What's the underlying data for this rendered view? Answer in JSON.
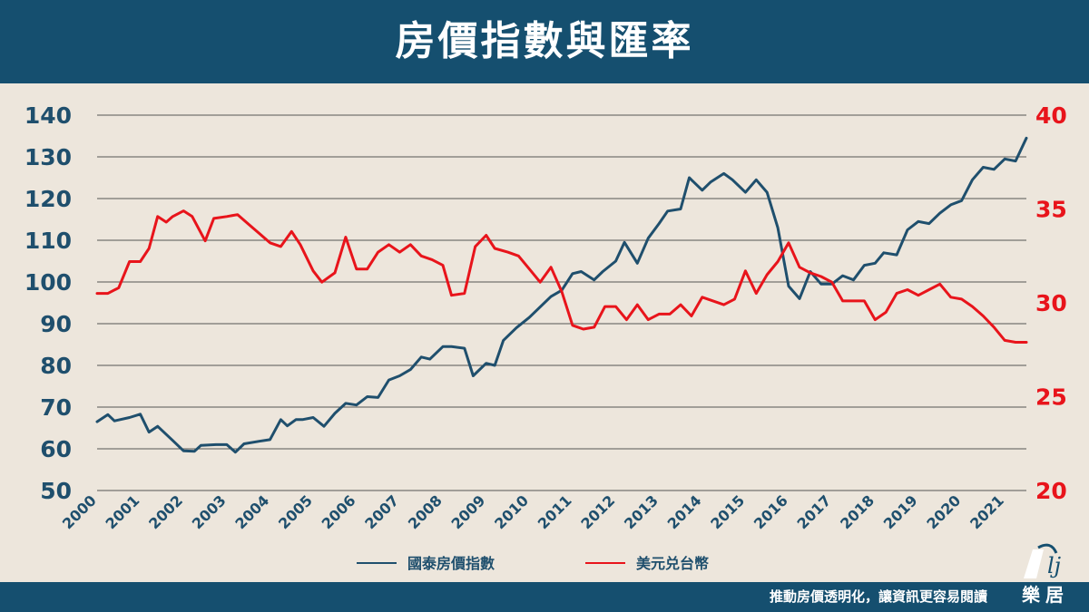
{
  "header": {
    "title": "房價指數與匯率"
  },
  "footer": {
    "slogan": "推動房價透明化，讓資訊更容易閱讀",
    "logo_text": "樂居",
    "logo_icon": "rakuyu-logo-icon"
  },
  "colors": {
    "header_bg": "#154f6f",
    "background": "#ede6dc",
    "index_line": "#1f4f6d",
    "fx_line": "#e8141b",
    "grid": "#555555"
  },
  "chart_data": {
    "type": "line",
    "title": "房價指數與匯率",
    "xlabel": "",
    "ylabel_left": "",
    "ylabel_right": "",
    "x_range": [
      2000,
      2021.5
    ],
    "x_tick_labels": [
      "2000",
      "2001",
      "2002",
      "2003",
      "2004",
      "2005",
      "2006",
      "2007",
      "2008",
      "2009",
      "2010",
      "2011",
      "2012",
      "2013",
      "2014",
      "2015",
      "2016",
      "2017",
      "2018",
      "2019",
      "2020",
      "2021"
    ],
    "y_left": {
      "range": [
        50,
        140
      ],
      "ticks": [
        "50",
        "60",
        "70",
        "80",
        "90",
        "100",
        "110",
        "120",
        "130",
        "140"
      ]
    },
    "y_right": {
      "range": [
        20,
        40
      ],
      "ticks": [
        "20",
        "25",
        "30",
        "35",
        "40"
      ]
    },
    "grid": true,
    "legend_position": "bottom",
    "legend": [
      "國泰房價指數",
      "美元兑台幣"
    ],
    "series": [
      {
        "name": "國泰房價指數",
        "axis": "left",
        "x": [
          2000.0,
          2000.25,
          2000.4,
          2000.75,
          2001.0,
          2001.2,
          2001.4,
          2001.75,
          2002.0,
          2002.25,
          2002.4,
          2002.75,
          2003.0,
          2003.2,
          2003.4,
          2003.75,
          2004.0,
          2004.25,
          2004.4,
          2004.6,
          2004.75,
          2005.0,
          2005.25,
          2005.5,
          2005.75,
          2006.0,
          2006.25,
          2006.5,
          2006.75,
          2007.0,
          2007.25,
          2007.5,
          2007.7,
          2008.0,
          2008.2,
          2008.5,
          2008.7,
          2009.0,
          2009.2,
          2009.4,
          2009.7,
          2010.0,
          2010.25,
          2010.5,
          2010.75,
          2011.0,
          2011.2,
          2011.5,
          2011.7,
          2012.0,
          2012.2,
          2012.5,
          2012.75,
          2013.0,
          2013.2,
          2013.5,
          2013.7,
          2014.0,
          2014.2,
          2014.5,
          2014.7,
          2015.0,
          2015.25,
          2015.5,
          2015.75,
          2016.0,
          2016.25,
          2016.5,
          2016.75,
          2017.0,
          2017.25,
          2017.5,
          2017.75,
          2018.0,
          2018.2,
          2018.5,
          2018.75,
          2019.0,
          2019.25,
          2019.5,
          2019.75,
          2020.0,
          2020.25,
          2020.5,
          2020.75,
          2021.0,
          2021.25,
          2021.5
        ],
        "values": [
          66.5,
          68.2,
          66.7,
          67.5,
          68.3,
          64.0,
          65.4,
          62.0,
          59.5,
          59.4,
          60.8,
          61.0,
          61.0,
          59.2,
          61.2,
          61.8,
          62.2,
          67.0,
          65.5,
          67.0,
          67.0,
          67.5,
          65.4,
          68.5,
          70.9,
          70.5,
          72.5,
          72.3,
          76.5,
          77.5,
          79.0,
          82.0,
          81.5,
          84.5,
          84.5,
          84.1,
          77.5,
          80.5,
          80.0,
          86.0,
          89.0,
          91.5,
          94.0,
          96.5,
          98.0,
          102.0,
          102.5,
          100.5,
          102.5,
          105.0,
          109.5,
          104.5,
          110.5,
          114.0,
          117.0,
          117.5,
          125.0,
          122.0,
          124.0,
          126.0,
          124.5,
          121.5,
          124.5,
          121.5,
          113.0,
          99.0,
          96.0,
          102.5,
          99.5,
          99.5,
          101.5,
          100.5,
          104.0,
          104.5,
          107.0,
          106.5,
          112.5,
          114.5,
          114.0,
          116.5,
          118.5,
          119.5,
          124.5,
          127.5,
          127.0,
          129.5,
          129.0,
          134.5
        ]
      },
      {
        "name": "美元兑台幣",
        "axis": "right",
        "x": [
          2000.0,
          2000.25,
          2000.5,
          2000.75,
          2001.0,
          2001.2,
          2001.4,
          2001.6,
          2001.75,
          2002.0,
          2002.2,
          2002.5,
          2002.7,
          2003.0,
          2003.25,
          2003.5,
          2003.75,
          2004.0,
          2004.25,
          2004.5,
          2004.7,
          2005.0,
          2005.2,
          2005.5,
          2005.75,
          2006.0,
          2006.25,
          2006.5,
          2006.75,
          2007.0,
          2007.25,
          2007.5,
          2007.75,
          2008.0,
          2008.2,
          2008.5,
          2008.75,
          2009.0,
          2009.2,
          2009.5,
          2009.75,
          2010.0,
          2010.25,
          2010.5,
          2010.75,
          2011.0,
          2011.25,
          2011.5,
          2011.75,
          2012.0,
          2012.25,
          2012.5,
          2012.75,
          2013.0,
          2013.25,
          2013.5,
          2013.75,
          2014.0,
          2014.25,
          2014.5,
          2014.75,
          2015.0,
          2015.25,
          2015.5,
          2015.75,
          2016.0,
          2016.25,
          2016.5,
          2016.75,
          2017.0,
          2017.25,
          2017.5,
          2017.75,
          2018.0,
          2018.25,
          2018.5,
          2018.75,
          2019.0,
          2019.25,
          2019.5,
          2019.75,
          2020.0,
          2020.25,
          2020.5,
          2020.75,
          2021.0,
          2021.25,
          2021.5
        ],
        "values": [
          30.5,
          30.5,
          30.8,
          32.2,
          32.2,
          32.9,
          34.6,
          34.3,
          34.6,
          34.9,
          34.6,
          33.3,
          34.5,
          34.6,
          34.7,
          34.2,
          33.7,
          33.2,
          33.0,
          33.8,
          33.1,
          31.7,
          31.1,
          31.6,
          33.5,
          31.8,
          31.8,
          32.7,
          33.1,
          32.7,
          33.1,
          32.5,
          32.3,
          32.0,
          30.4,
          30.5,
          33.0,
          33.6,
          32.9,
          32.7,
          32.5,
          31.8,
          31.1,
          31.9,
          30.6,
          28.8,
          28.6,
          28.7,
          29.8,
          29.8,
          29.1,
          29.9,
          29.1,
          29.4,
          29.4,
          29.9,
          29.3,
          30.3,
          30.1,
          29.9,
          30.2,
          31.7,
          30.5,
          31.5,
          32.2,
          33.2,
          31.9,
          31.6,
          31.4,
          31.1,
          30.1,
          30.1,
          30.1,
          29.1,
          29.5,
          30.5,
          30.7,
          30.4,
          30.7,
          31.0,
          30.3,
          30.2,
          29.8,
          29.3,
          28.7,
          28.0,
          27.9,
          27.9
        ]
      }
    ]
  }
}
